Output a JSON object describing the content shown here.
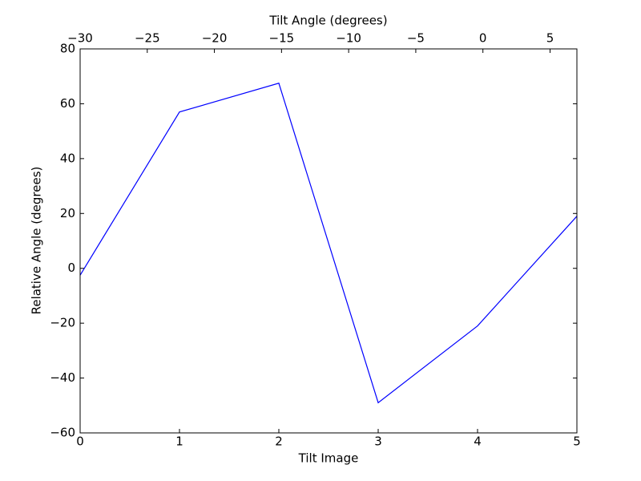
{
  "chart_data": {
    "type": "line",
    "xlabel": "Tilt Image",
    "ylabel": "Relative Angle (degrees)",
    "x2label": "Tilt Angle (degrees)",
    "x": [
      0,
      1,
      2,
      3,
      4,
      5
    ],
    "series": [
      {
        "color": "#0000ff",
        "values": [
          -2.5,
          57,
          67.5,
          -49,
          -21,
          19
        ]
      }
    ],
    "xlim": [
      0,
      5
    ],
    "xticks": [
      0,
      1,
      2,
      3,
      4,
      5
    ],
    "ylim": [
      -60,
      80
    ],
    "yticks": [
      {
        "value": -60,
        "label": "−60"
      },
      {
        "value": -40,
        "label": "−40"
      },
      {
        "value": -20,
        "label": "−20"
      },
      0,
      20,
      40,
      60,
      80
    ],
    "x2lim": [
      -30,
      7
    ],
    "x2ticks": [
      {
        "value": -30,
        "label": "−30"
      },
      {
        "value": -25,
        "label": "−25"
      },
      {
        "value": -20,
        "label": "−20"
      },
      {
        "value": -15,
        "label": "−15"
      },
      {
        "value": -10,
        "label": "−10"
      },
      {
        "value": -5,
        "label": "−5"
      },
      0,
      5
    ],
    "grid": false
  }
}
